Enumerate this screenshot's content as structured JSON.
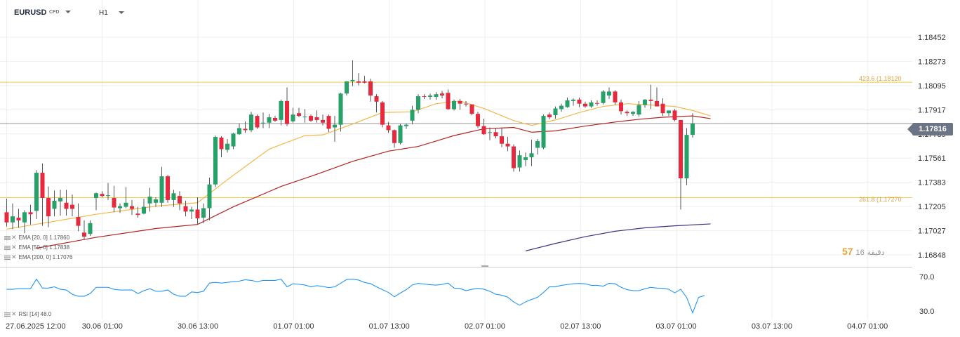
{
  "header": {
    "symbol": "EURUSD",
    "instrument_type": "CFD",
    "timeframe": "H1"
  },
  "indicators": {
    "ema20": {
      "label": "EMA [20, 0] 1.17860",
      "color": "#f2b84b"
    },
    "ema50": {
      "label": "EMA [50, 0] 1.17838",
      "color": "#b22222"
    },
    "ema200": {
      "label": "EMA [200, 0] 1.17076",
      "color": "#3a3384"
    },
    "rsi": {
      "label": "RSI [14] 48.0",
      "color": "#2196f3"
    }
  },
  "levels": [
    {
      "label": "423.6 (1.18120",
      "value": 1.1812,
      "color": "#f2c94c"
    },
    {
      "label": "261.8 (1.17270",
      "value": 1.1727,
      "color": "#f2c94c"
    }
  ],
  "current_price": {
    "label": "1.17816",
    "value": 1.17816
  },
  "countdown": {
    "main": "57",
    "mid": "16",
    "suffix": "دقيقة"
  },
  "colors": {
    "bull": "#26a269",
    "bear": "#e8293d",
    "grid": "#eeeeee",
    "price_line": "#9a9a9a"
  },
  "chart_data": {
    "type": "candlestick",
    "title": "EURUSD H1",
    "price_axis": {
      "ylim": [
        1.1676,
        1.1854
      ],
      "ticks": [
        "1.18452",
        "1.18273",
        "1.18095",
        "1.17917",
        "1.17739",
        "1.17561",
        "1.17383",
        "1.17205",
        "1.17027",
        "1.16848"
      ]
    },
    "time_axis": {
      "labels": [
        "27.06.2025 12:00",
        "30.06 01:00",
        "30.06 13:00",
        "01.07 01:00",
        "01.07 13:00",
        "02.07 01:00",
        "02.07 13:00",
        "03.07 01:00",
        "03.07 13:00",
        "04.07 01:00"
      ]
    },
    "candles": [
      {
        "o": 1.17162,
        "h": 1.17262,
        "l": 1.17057,
        "c": 1.17087
      },
      {
        "o": 1.17087,
        "h": 1.17227,
        "l": 1.17037,
        "c": 1.17132
      },
      {
        "o": 1.17122,
        "h": 1.17187,
        "l": 1.17047,
        "c": 1.17102
      },
      {
        "o": 1.17087,
        "h": 1.17177,
        "l": 1.17007,
        "c": 1.17162
      },
      {
        "o": 1.17162,
        "h": 1.17217,
        "l": 1.17072,
        "c": 1.17147
      },
      {
        "o": 1.17172,
        "h": 1.17473,
        "l": 1.17112,
        "c": 1.17453
      },
      {
        "o": 1.17453,
        "h": 1.17522,
        "l": 1.17062,
        "c": 1.17267
      },
      {
        "o": 1.17267,
        "h": 1.17352,
        "l": 1.17052,
        "c": 1.17132
      },
      {
        "o": 1.17187,
        "h": 1.17322,
        "l": 1.17132,
        "c": 1.17247
      },
      {
        "o": 1.17242,
        "h": 1.17327,
        "l": 1.17137,
        "c": 1.17267
      },
      {
        "o": 1.17232,
        "h": 1.17327,
        "l": 1.17137,
        "c": 1.17187
      },
      {
        "o": 1.17217,
        "h": 1.17292,
        "l": 1.17132,
        "c": 1.17187
      },
      {
        "o": 1.17127,
        "h": 1.17227,
        "l": 1.17022,
        "c": 1.17062
      },
      {
        "o": 1.17012,
        "h": 1.17102,
        "l": 1.16962,
        "c": 1.16982
      },
      {
        "o": 1.17002,
        "h": 1.17102,
        "l": 1.16987,
        "c": 1.17082
      },
      {
        "o": 1.17267,
        "h": 1.17307,
        "l": 1.17177,
        "c": 1.17302
      },
      {
        "o": 1.17297,
        "h": 1.17317,
        "l": 1.17272,
        "c": 1.17282
      },
      {
        "o": 1.17282,
        "h": 1.17377,
        "l": 1.17252,
        "c": 1.17287
      },
      {
        "o": 1.17267,
        "h": 1.17357,
        "l": 1.17162,
        "c": 1.17197
      },
      {
        "o": 1.17192,
        "h": 1.17227,
        "l": 1.17157,
        "c": 1.17207
      },
      {
        "o": 1.17202,
        "h": 1.17347,
        "l": 1.17192,
        "c": 1.17232
      },
      {
        "o": 1.17207,
        "h": 1.17252,
        "l": 1.17142,
        "c": 1.17187
      },
      {
        "o": 1.17152,
        "h": 1.17202,
        "l": 1.17122,
        "c": 1.17142
      },
      {
        "o": 1.17152,
        "h": 1.17262,
        "l": 1.17147,
        "c": 1.17202
      },
      {
        "o": 1.17227,
        "h": 1.17342,
        "l": 1.17167,
        "c": 1.17277
      },
      {
        "o": 1.17232,
        "h": 1.17272,
        "l": 1.17202,
        "c": 1.17257
      },
      {
        "o": 1.17232,
        "h": 1.17497,
        "l": 1.17202,
        "c": 1.17427
      },
      {
        "o": 1.17427,
        "h": 1.17437,
        "l": 1.17232,
        "c": 1.17252
      },
      {
        "o": 1.17252,
        "h": 1.17327,
        "l": 1.17202,
        "c": 1.17302
      },
      {
        "o": 1.17282,
        "h": 1.17317,
        "l": 1.17177,
        "c": 1.17227
      },
      {
        "o": 1.17207,
        "h": 1.17247,
        "l": 1.17132,
        "c": 1.17167
      },
      {
        "o": 1.17167,
        "h": 1.17202,
        "l": 1.17112,
        "c": 1.17182
      },
      {
        "o": 1.17182,
        "h": 1.17272,
        "l": 1.17072,
        "c": 1.17117
      },
      {
        "o": 1.17122,
        "h": 1.17227,
        "l": 1.17082,
        "c": 1.17192
      },
      {
        "o": 1.17192,
        "h": 1.17417,
        "l": 1.17102,
        "c": 1.17367
      },
      {
        "o": 1.17367,
        "h": 1.17727,
        "l": 1.17347,
        "c": 1.17717
      },
      {
        "o": 1.17712,
        "h": 1.17722,
        "l": 1.17567,
        "c": 1.17627
      },
      {
        "o": 1.17622,
        "h": 1.17702,
        "l": 1.17602,
        "c": 1.17667
      },
      {
        "o": 1.17647,
        "h": 1.17747,
        "l": 1.17627,
        "c": 1.17742
      },
      {
        "o": 1.17737,
        "h": 1.17817,
        "l": 1.17732,
        "c": 1.17782
      },
      {
        "o": 1.17777,
        "h": 1.17832,
        "l": 1.17747,
        "c": 1.17767
      },
      {
        "o": 1.17767,
        "h": 1.17902,
        "l": 1.17752,
        "c": 1.17882
      },
      {
        "o": 1.17872,
        "h": 1.17882,
        "l": 1.17777,
        "c": 1.17787
      },
      {
        "o": 1.17817,
        "h": 1.17897,
        "l": 1.17782,
        "c": 1.17822
      },
      {
        "o": 1.17822,
        "h": 1.17887,
        "l": 1.17782,
        "c": 1.17862
      },
      {
        "o": 1.17857,
        "h": 1.17872,
        "l": 1.17827,
        "c": 1.17837
      },
      {
        "o": 1.17842,
        "h": 1.17992,
        "l": 1.17802,
        "c": 1.17982
      },
      {
        "o": 1.17982,
        "h": 1.18082,
        "l": 1.17797,
        "c": 1.17812
      },
      {
        "o": 1.17832,
        "h": 1.17932,
        "l": 1.17822,
        "c": 1.17882
      },
      {
        "o": 1.17892,
        "h": 1.17932,
        "l": 1.17862,
        "c": 1.17872
      },
      {
        "o": 1.17867,
        "h": 1.17922,
        "l": 1.17822,
        "c": 1.17867
      },
      {
        "o": 1.17872,
        "h": 1.17882,
        "l": 1.17827,
        "c": 1.17837
      },
      {
        "o": 1.17862,
        "h": 1.17912,
        "l": 1.17822,
        "c": 1.17842
      },
      {
        "o": 1.17842,
        "h": 1.17882,
        "l": 1.17802,
        "c": 1.17822
      },
      {
        "o": 1.17872,
        "h": 1.17882,
        "l": 1.17752,
        "c": 1.17777
      },
      {
        "o": 1.17787,
        "h": 1.17872,
        "l": 1.17682,
        "c": 1.17807
      },
      {
        "o": 1.17807,
        "h": 1.18042,
        "l": 1.17757,
        "c": 1.18037
      },
      {
        "o": 1.18037,
        "h": 1.18128,
        "l": 1.18022,
        "c": 1.18127
      },
      {
        "o": 1.18127,
        "h": 1.18282,
        "l": 1.18092,
        "c": 1.18137
      },
      {
        "o": 1.18127,
        "h": 1.18187,
        "l": 1.18097,
        "c": 1.18117
      },
      {
        "o": 1.18127,
        "h": 1.18167,
        "l": 1.18112,
        "c": 1.18117
      },
      {
        "o": 1.18127,
        "h": 1.18147,
        "l": 1.17977,
        "c": 1.18022
      },
      {
        "o": 1.18017,
        "h": 1.18032,
        "l": 1.17897,
        "c": 1.17977
      },
      {
        "o": 1.17972,
        "h": 1.17982,
        "l": 1.17787,
        "c": 1.17807
      },
      {
        "o": 1.17802,
        "h": 1.17827,
        "l": 1.17747,
        "c": 1.17767
      },
      {
        "o": 1.17767,
        "h": 1.17772,
        "l": 1.17637,
        "c": 1.17672
      },
      {
        "o": 1.17672,
        "h": 1.17812,
        "l": 1.17662,
        "c": 1.17802
      },
      {
        "o": 1.17797,
        "h": 1.17817,
        "l": 1.17777,
        "c": 1.17807
      },
      {
        "o": 1.17837,
        "h": 1.17947,
        "l": 1.17812,
        "c": 1.17917
      },
      {
        "o": 1.17917,
        "h": 1.18032,
        "l": 1.17892,
        "c": 1.18017
      },
      {
        "o": 1.18017,
        "h": 1.18032,
        "l": 1.17997,
        "c": 1.18012
      },
      {
        "o": 1.18012,
        "h": 1.18037,
        "l": 1.17992,
        "c": 1.18022
      },
      {
        "o": 1.18012,
        "h": 1.18047,
        "l": 1.17992,
        "c": 1.18032
      },
      {
        "o": 1.18037,
        "h": 1.18057,
        "l": 1.18002,
        "c": 1.18022
      },
      {
        "o": 1.18042,
        "h": 1.18067,
        "l": 1.17917,
        "c": 1.17922
      },
      {
        "o": 1.17922,
        "h": 1.17992,
        "l": 1.17912,
        "c": 1.17982
      },
      {
        "o": 1.17982,
        "h": 1.17997,
        "l": 1.17917,
        "c": 1.17962
      },
      {
        "o": 1.17962,
        "h": 1.17982,
        "l": 1.17942,
        "c": 1.17957
      },
      {
        "o": 1.17957,
        "h": 1.17957,
        "l": 1.17877,
        "c": 1.17887
      },
      {
        "o": 1.17887,
        "h": 1.17902,
        "l": 1.17782,
        "c": 1.17797
      },
      {
        "o": 1.17797,
        "h": 1.17852,
        "l": 1.17732,
        "c": 1.17737
      },
      {
        "o": 1.17752,
        "h": 1.17787,
        "l": 1.17692,
        "c": 1.17752
      },
      {
        "o": 1.17752,
        "h": 1.17782,
        "l": 1.17707,
        "c": 1.17722
      },
      {
        "o": 1.17722,
        "h": 1.17787,
        "l": 1.17642,
        "c": 1.17667
      },
      {
        "o": 1.17667,
        "h": 1.17717,
        "l": 1.17612,
        "c": 1.17647
      },
      {
        "o": 1.17647,
        "h": 1.17662,
        "l": 1.17462,
        "c": 1.17487
      },
      {
        "o": 1.17492,
        "h": 1.17617,
        "l": 1.17462,
        "c": 1.17582
      },
      {
        "o": 1.17547,
        "h": 1.17602,
        "l": 1.17502,
        "c": 1.17567
      },
      {
        "o": 1.17567,
        "h": 1.17697,
        "l": 1.17502,
        "c": 1.17597
      },
      {
        "o": 1.17637,
        "h": 1.17702,
        "l": 1.17587,
        "c": 1.17687
      },
      {
        "o": 1.17637,
        "h": 1.17882,
        "l": 1.17627,
        "c": 1.17872
      },
      {
        "o": 1.17882,
        "h": 1.17897,
        "l": 1.17847,
        "c": 1.17862
      },
      {
        "o": 1.17877,
        "h": 1.17942,
        "l": 1.17852,
        "c": 1.17927
      },
      {
        "o": 1.17922,
        "h": 1.17962,
        "l": 1.17902,
        "c": 1.17947
      },
      {
        "o": 1.17937,
        "h": 1.18007,
        "l": 1.17932,
        "c": 1.17987
      },
      {
        "o": 1.17982,
        "h": 1.18002,
        "l": 1.17947,
        "c": 1.17992
      },
      {
        "o": 1.17992,
        "h": 1.18007,
        "l": 1.17937,
        "c": 1.17962
      },
      {
        "o": 1.17962,
        "h": 1.17977,
        "l": 1.17932,
        "c": 1.17942
      },
      {
        "o": 1.17942,
        "h": 1.17987,
        "l": 1.17932,
        "c": 1.17972
      },
      {
        "o": 1.17967,
        "h": 1.17987,
        "l": 1.17947,
        "c": 1.17962
      },
      {
        "o": 1.17967,
        "h": 1.18062,
        "l": 1.17957,
        "c": 1.18052
      },
      {
        "o": 1.18022,
        "h": 1.18082,
        "l": 1.17997,
        "c": 1.18052
      },
      {
        "o": 1.18052,
        "h": 1.18062,
        "l": 1.17952,
        "c": 1.17972
      },
      {
        "o": 1.17972,
        "h": 1.17992,
        "l": 1.17882,
        "c": 1.17907
      },
      {
        "o": 1.17902,
        "h": 1.17912,
        "l": 1.17872,
        "c": 1.17892
      },
      {
        "o": 1.17887,
        "h": 1.17907,
        "l": 1.17872,
        "c": 1.17902
      },
      {
        "o": 1.17882,
        "h": 1.17982,
        "l": 1.17867,
        "c": 1.17952
      },
      {
        "o": 1.17952,
        "h": 1.17997,
        "l": 1.17932,
        "c": 1.17992
      },
      {
        "o": 1.17992,
        "h": 1.18102,
        "l": 1.17922,
        "c": 1.17982
      },
      {
        "o": 1.17982,
        "h": 1.18082,
        "l": 1.17942,
        "c": 1.17942
      },
      {
        "o": 1.17962,
        "h": 1.18002,
        "l": 1.17872,
        "c": 1.17892
      },
      {
        "o": 1.17892,
        "h": 1.17912,
        "l": 1.17872,
        "c": 1.17912
      },
      {
        "o": 1.17912,
        "h": 1.17922,
        "l": 1.17832,
        "c": 1.17842
      },
      {
        "o": 1.17842,
        "h": 1.17842,
        "l": 1.17182,
        "c": 1.17412
      },
      {
        "o": 1.17412,
        "h": 1.17782,
        "l": 1.17362,
        "c": 1.17732
      },
      {
        "o": 1.17732,
        "h": 1.17892,
        "l": 1.17712,
        "c": 1.17816
      }
    ],
    "ema20": [
      [
        0,
        1.17037
      ],
      [
        15,
        1.17147
      ],
      [
        25,
        1.17207
      ],
      [
        32,
        1.17232
      ],
      [
        37,
        1.17402
      ],
      [
        44,
        1.17627
      ],
      [
        50,
        1.17727
      ],
      [
        53,
        1.17732
      ],
      [
        58,
        1.17812
      ],
      [
        63,
        1.17897
      ],
      [
        68,
        1.17902
      ],
      [
        72,
        1.17962
      ],
      [
        76,
        1.17982
      ],
      [
        80,
        1.17927
      ],
      [
        85,
        1.17837
      ],
      [
        88,
        1.17802
      ],
      [
        92,
        1.17842
      ],
      [
        96,
        1.17897
      ],
      [
        100,
        1.17942
      ],
      [
        104,
        1.17962
      ],
      [
        108,
        1.17952
      ],
      [
        112,
        1.17942
      ],
      [
        115,
        1.17912
      ],
      [
        118,
        1.17872
      ]
    ],
    "ema50": [
      [
        5,
        1.16897
      ],
      [
        15,
        1.16977
      ],
      [
        25,
        1.17042
      ],
      [
        32,
        1.17072
      ],
      [
        38,
        1.17202
      ],
      [
        46,
        1.17352
      ],
      [
        52,
        1.17442
      ],
      [
        58,
        1.17537
      ],
      [
        64,
        1.17612
      ],
      [
        69,
        1.17647
      ],
      [
        75,
        1.17727
      ],
      [
        80,
        1.17777
      ],
      [
        85,
        1.17787
      ],
      [
        88,
        1.17752
      ],
      [
        92,
        1.17762
      ],
      [
        97,
        1.17797
      ],
      [
        102,
        1.17827
      ],
      [
        106,
        1.17847
      ],
      [
        110,
        1.17862
      ],
      [
        115,
        1.17872
      ],
      [
        118,
        1.17852
      ]
    ],
    "ema200": [
      [
        87,
        1.16877
      ],
      [
        92,
        1.16932
      ],
      [
        97,
        1.16982
      ],
      [
        102,
        1.17022
      ],
      [
        107,
        1.17047
      ],
      [
        112,
        1.17062
      ],
      [
        118,
        1.17076
      ]
    ],
    "rsi": {
      "ylim": [
        20,
        80
      ],
      "ticks": [
        "70.0",
        "30.0"
      ],
      "values": [
        55.3,
        55.3,
        56,
        56,
        56,
        67.2,
        56.7,
        56.7,
        58.2,
        55.3,
        54.5,
        49.5,
        47.2,
        47.2,
        50.3,
        57.6,
        57.6,
        57.6,
        55.3,
        54.5,
        54.5,
        54.5,
        50.3,
        53.7,
        56,
        53,
        53,
        54.5,
        49.5,
        47.2,
        47.2,
        52.2,
        51.5,
        53,
        62.6,
        63.4,
        62.6,
        63.4,
        64.2,
        64.9,
        66.5,
        65.7,
        64.2,
        65.7,
        65.7,
        65.7,
        67.2,
        58.2,
        61.8,
        61.1,
        60.3,
        58.2,
        59.5,
        58.7,
        57.2,
        58.2,
        62.4,
        66.8,
        67.2,
        66.1,
        63.3,
        62,
        58.2,
        54.9,
        51.6,
        46.5,
        50.9,
        54.9,
        60.3,
        62.3,
        61.4,
        60.6,
        60.2,
        61,
        62.6,
        56.7,
        56.3,
        53.7,
        55.3,
        56.4,
        55.4,
        53,
        49.5,
        48.4,
        46.1,
        40.5,
        36.7,
        40.6,
        43.4,
        46,
        51.6,
        58.2,
        58.2,
        59.9,
        60.9,
        61.8,
        62.2,
        61.7,
        59.9,
        59.9,
        58.9,
        62.4,
        61.8,
        57.6,
        54.9,
        53.7,
        53.7,
        55.9,
        57.6,
        56.7,
        56.5,
        55.3,
        51.1,
        55.3,
        45.7,
        27.7,
        45.8,
        48
      ]
    }
  }
}
